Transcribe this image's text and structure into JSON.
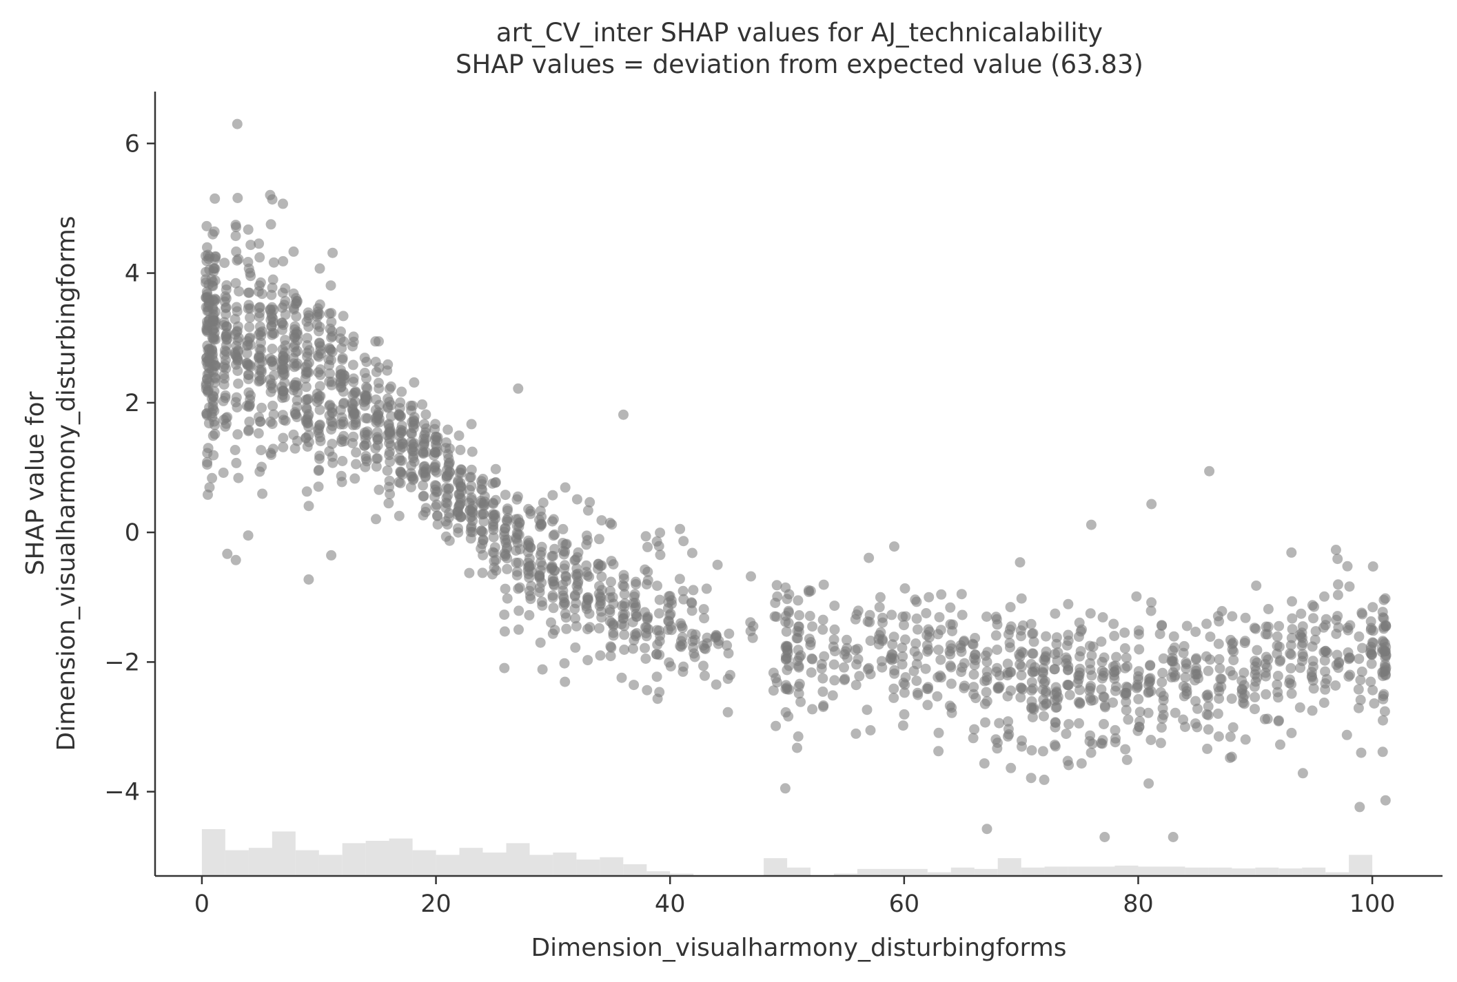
{
  "chart_data": {
    "type": "scatter",
    "title": "art_CV_inter SHAP values for AJ_technicalability",
    "subtitle": "SHAP values = deviation from expected value (63.83)",
    "xlabel": "Dimension_visualharmony_disturbingforms",
    "ylabel_line1": "SHAP value for",
    "ylabel_line2": "Dimension_visualharmony_disturbingforms",
    "xlim": [
      -4,
      106
    ],
    "ylim": [
      -5.3,
      6.8
    ],
    "xticks": [
      0,
      20,
      40,
      60,
      80,
      100
    ],
    "xtick_labels": [
      "0",
      "20",
      "40",
      "60",
      "80",
      "100"
    ],
    "yticks": [
      -4,
      -2,
      0,
      2,
      4,
      6
    ],
    "ytick_labels": [
      "−4",
      "−2",
      "0",
      "2",
      "4",
      "6"
    ],
    "grid": false,
    "point_color": "#7a7a7a",
    "histogram_color": "#e3e3e3",
    "trend": [
      {
        "x": 1,
        "y": 2.9,
        "spread": 0.9
      },
      {
        "x": 5,
        "y": 2.7,
        "spread": 0.8
      },
      {
        "x": 10,
        "y": 2.4,
        "spread": 0.7
      },
      {
        "x": 15,
        "y": 1.7,
        "spread": 0.45
      },
      {
        "x": 20,
        "y": 0.9,
        "spread": 0.4
      },
      {
        "x": 25,
        "y": 0.1,
        "spread": 0.4
      },
      {
        "x": 30,
        "y": -0.6,
        "spread": 0.45
      },
      {
        "x": 35,
        "y": -1.1,
        "spread": 0.45
      },
      {
        "x": 40,
        "y": -1.45,
        "spread": 0.45
      },
      {
        "x": 45,
        "y": -1.65,
        "spread": 0.5
      },
      {
        "x": 50,
        "y": -1.8,
        "spread": 0.5
      },
      {
        "x": 55,
        "y": -1.9,
        "spread": 0.5
      },
      {
        "x": 60,
        "y": -2.0,
        "spread": 0.55
      },
      {
        "x": 65,
        "y": -2.1,
        "spread": 0.55
      },
      {
        "x": 70,
        "y": -2.2,
        "spread": 0.6
      },
      {
        "x": 75,
        "y": -2.3,
        "spread": 0.6
      },
      {
        "x": 80,
        "y": -2.3,
        "spread": 0.55
      },
      {
        "x": 85,
        "y": -2.2,
        "spread": 0.5
      },
      {
        "x": 90,
        "y": -2.05,
        "spread": 0.45
      },
      {
        "x": 95,
        "y": -1.95,
        "spread": 0.45
      },
      {
        "x": 101,
        "y": -1.9,
        "spread": 0.5
      }
    ],
    "points_per_column": [
      {
        "x": 0.5,
        "n": 70
      },
      {
        "x": 1,
        "n": 70
      },
      {
        "x": 2,
        "n": 40
      },
      {
        "x": 3,
        "n": 40
      },
      {
        "x": 4,
        "n": 40
      },
      {
        "x": 5,
        "n": 40
      },
      {
        "x": 6,
        "n": 40
      },
      {
        "x": 7,
        "n": 45
      },
      {
        "x": 8,
        "n": 45
      },
      {
        "x": 9,
        "n": 40
      },
      {
        "x": 10,
        "n": 40
      },
      {
        "x": 11,
        "n": 35
      },
      {
        "x": 12,
        "n": 35
      },
      {
        "x": 13,
        "n": 30
      },
      {
        "x": 14,
        "n": 30
      },
      {
        "x": 15,
        "n": 30
      },
      {
        "x": 16,
        "n": 30
      },
      {
        "x": 17,
        "n": 30
      },
      {
        "x": 18,
        "n": 30
      },
      {
        "x": 19,
        "n": 30
      },
      {
        "x": 20,
        "n": 30
      },
      {
        "x": 21,
        "n": 30
      },
      {
        "x": 22,
        "n": 30
      },
      {
        "x": 23,
        "n": 25
      },
      {
        "x": 24,
        "n": 25
      },
      {
        "x": 25,
        "n": 25
      },
      {
        "x": 26,
        "n": 25
      },
      {
        "x": 27,
        "n": 25
      },
      {
        "x": 28,
        "n": 25
      },
      {
        "x": 29,
        "n": 25
      },
      {
        "x": 30,
        "n": 25
      },
      {
        "x": 31,
        "n": 25
      },
      {
        "x": 32,
        "n": 20
      },
      {
        "x": 33,
        "n": 20
      },
      {
        "x": 34,
        "n": 20
      },
      {
        "x": 35,
        "n": 20
      },
      {
        "x": 36,
        "n": 18
      },
      {
        "x": 37,
        "n": 18
      },
      {
        "x": 38,
        "n": 18
      },
      {
        "x": 39,
        "n": 18
      },
      {
        "x": 40,
        "n": 15
      },
      {
        "x": 41,
        "n": 15
      },
      {
        "x": 42,
        "n": 12
      },
      {
        "x": 43,
        "n": 10
      },
      {
        "x": 44,
        "n": 8
      },
      {
        "x": 45,
        "n": 6
      },
      {
        "x": 47,
        "n": 5
      },
      {
        "x": 49,
        "n": 10
      },
      {
        "x": 50,
        "n": 30
      },
      {
        "x": 51,
        "n": 20
      },
      {
        "x": 52,
        "n": 12
      },
      {
        "x": 53,
        "n": 10
      },
      {
        "x": 54,
        "n": 8
      },
      {
        "x": 55,
        "n": 8
      },
      {
        "x": 56,
        "n": 10
      },
      {
        "x": 57,
        "n": 10
      },
      {
        "x": 58,
        "n": 12
      },
      {
        "x": 59,
        "n": 14
      },
      {
        "x": 60,
        "n": 14
      },
      {
        "x": 61,
        "n": 12
      },
      {
        "x": 62,
        "n": 14
      },
      {
        "x": 63,
        "n": 12
      },
      {
        "x": 64,
        "n": 14
      },
      {
        "x": 65,
        "n": 12
      },
      {
        "x": 66,
        "n": 14
      },
      {
        "x": 67,
        "n": 14
      },
      {
        "x": 68,
        "n": 16
      },
      {
        "x": 69,
        "n": 18
      },
      {
        "x": 70,
        "n": 18
      },
      {
        "x": 71,
        "n": 22
      },
      {
        "x": 72,
        "n": 22
      },
      {
        "x": 73,
        "n": 22
      },
      {
        "x": 74,
        "n": 18
      },
      {
        "x": 75,
        "n": 18
      },
      {
        "x": 76,
        "n": 18
      },
      {
        "x": 77,
        "n": 18
      },
      {
        "x": 78,
        "n": 16
      },
      {
        "x": 79,
        "n": 16
      },
      {
        "x": 80,
        "n": 16
      },
      {
        "x": 81,
        "n": 16
      },
      {
        "x": 82,
        "n": 14
      },
      {
        "x": 83,
        "n": 14
      },
      {
        "x": 84,
        "n": 14
      },
      {
        "x": 85,
        "n": 14
      },
      {
        "x": 86,
        "n": 14
      },
      {
        "x": 87,
        "n": 14
      },
      {
        "x": 88,
        "n": 14
      },
      {
        "x": 89,
        "n": 14
      },
      {
        "x": 90,
        "n": 14
      },
      {
        "x": 91,
        "n": 14
      },
      {
        "x": 92,
        "n": 14
      },
      {
        "x": 93,
        "n": 14
      },
      {
        "x": 94,
        "n": 14
      },
      {
        "x": 95,
        "n": 14
      },
      {
        "x": 96,
        "n": 14
      },
      {
        "x": 97,
        "n": 14
      },
      {
        "x": 98,
        "n": 12
      },
      {
        "x": 99,
        "n": 12
      },
      {
        "x": 100,
        "n": 18
      },
      {
        "x": 101,
        "n": 40
      }
    ],
    "histogram": {
      "bin_edges": [
        0,
        2,
        4,
        6,
        8,
        10,
        12,
        14,
        16,
        18,
        20,
        22,
        24,
        26,
        28,
        30,
        32,
        34,
        36,
        38,
        40,
        42,
        44,
        46,
        48,
        50,
        52,
        54,
        56,
        58,
        60,
        62,
        64,
        66,
        68,
        70,
        72,
        74,
        76,
        78,
        80,
        82,
        84,
        86,
        88,
        90,
        92,
        94,
        96,
        98,
        100,
        102
      ],
      "relative_heights": [
        1.0,
        0.55,
        0.6,
        0.95,
        0.55,
        0.45,
        0.7,
        0.75,
        0.8,
        0.55,
        0.45,
        0.6,
        0.5,
        0.7,
        0.45,
        0.5,
        0.35,
        0.4,
        0.25,
        0.1,
        0.05,
        0.0,
        0.0,
        0.0,
        0.38,
        0.18,
        0.0,
        0.05,
        0.15,
        0.15,
        0.15,
        0.08,
        0.18,
        0.15,
        0.38,
        0.18,
        0.2,
        0.2,
        0.2,
        0.22,
        0.2,
        0.2,
        0.18,
        0.18,
        0.16,
        0.18,
        0.16,
        0.18,
        0.08,
        0.45,
        0.0
      ]
    }
  }
}
